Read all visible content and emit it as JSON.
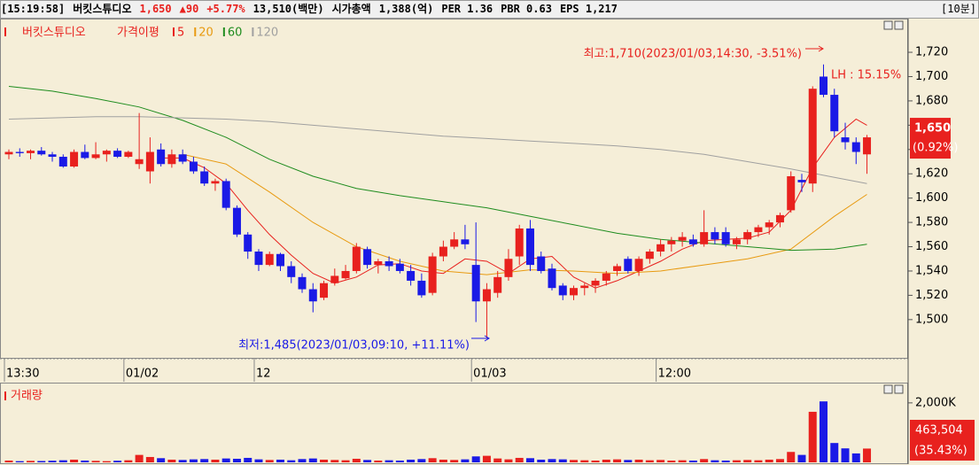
{
  "header": {
    "items": [
      {
        "text": "[15:19:58]"
      },
      {
        "text": "버킷스튜디오"
      },
      {
        "text": "1,650",
        "color": "#e8211e"
      },
      {
        "text": "▲90",
        "color": "#e8211e"
      },
      {
        "text": "+5.77%",
        "color": "#e8211e"
      },
      {
        "text": "13,510(백만)"
      },
      {
        "text": "시가총액"
      },
      {
        "text": "1,388(억)"
      },
      {
        "text": "PER 1.36"
      },
      {
        "text": "PBR 0.63"
      },
      {
        "text": "EPS 1,217"
      }
    ],
    "interval": "[10분]"
  },
  "chart_data": [
    {
      "type": "candlestick",
      "legend_title": "버킷스튜디오",
      "legend_label": "가격이평",
      "up_color": "#e8211e",
      "down_color": "#1a1ae6",
      "open": [
        1636,
        1638,
        1637,
        1639,
        1636,
        1634,
        1626,
        1638,
        1633,
        1636,
        1639,
        1634,
        1628,
        1622,
        1640,
        1628,
        1636,
        1630,
        1622,
        1612,
        1614,
        1592,
        1570,
        1556,
        1545,
        1554,
        1544,
        1535,
        1525,
        1518,
        1530,
        1534,
        1540,
        1558,
        1545,
        1548,
        1546,
        1540,
        1532,
        1522,
        1552,
        1560,
        1566,
        1545,
        1515,
        1522,
        1535,
        1552,
        1575,
        1552,
        1542,
        1528,
        1520,
        1526,
        1528,
        1532,
        1540,
        1550,
        1540,
        1550,
        1556,
        1562,
        1565,
        1566,
        1562,
        1572,
        1572,
        1562,
        1566,
        1572,
        1576,
        1580,
        1590,
        1615,
        1612,
        1700,
        1685,
        1650,
        1646,
        1636
      ],
      "high": [
        1640,
        1641,
        1640,
        1642,
        1638,
        1636,
        1640,
        1644,
        1646,
        1640,
        1641,
        1639,
        1670,
        1650,
        1645,
        1640,
        1640,
        1634,
        1626,
        1616,
        1616,
        1594,
        1572,
        1558,
        1556,
        1555,
        1548,
        1538,
        1530,
        1532,
        1542,
        1545,
        1563,
        1560,
        1550,
        1552,
        1550,
        1545,
        1538,
        1555,
        1565,
        1572,
        1578,
        1580,
        1530,
        1540,
        1558,
        1578,
        1582,
        1556,
        1546,
        1530,
        1528,
        1530,
        1534,
        1540,
        1546,
        1552,
        1552,
        1558,
        1566,
        1568,
        1572,
        1570,
        1590,
        1576,
        1576,
        1568,
        1574,
        1578,
        1582,
        1588,
        1622,
        1620,
        1692,
        1710,
        1690,
        1662,
        1650,
        1652
      ],
      "low": [
        1632,
        1634,
        1632,
        1635,
        1630,
        1625,
        1625,
        1632,
        1632,
        1630,
        1633,
        1633,
        1624,
        1612,
        1626,
        1625,
        1628,
        1620,
        1610,
        1606,
        1590,
        1568,
        1550,
        1540,
        1544,
        1540,
        1530,
        1522,
        1506,
        1516,
        1528,
        1533,
        1538,
        1542,
        1538,
        1540,
        1538,
        1528,
        1518,
        1520,
        1548,
        1558,
        1558,
        1498,
        1485,
        1518,
        1532,
        1545,
        1540,
        1538,
        1524,
        1516,
        1516,
        1520,
        1522,
        1528,
        1536,
        1538,
        1536,
        1546,
        1552,
        1556,
        1560,
        1560,
        1560,
        1562,
        1560,
        1558,
        1562,
        1568,
        1570,
        1576,
        1588,
        1605,
        1605,
        1683,
        1650,
        1640,
        1628,
        1620
      ],
      "close": [
        1638,
        1637,
        1639,
        1636,
        1634,
        1626,
        1638,
        1633,
        1636,
        1639,
        1634,
        1638,
        1632,
        1638,
        1628,
        1636,
        1630,
        1622,
        1612,
        1614,
        1592,
        1570,
        1556,
        1545,
        1554,
        1544,
        1535,
        1525,
        1515,
        1530,
        1536,
        1540,
        1560,
        1545,
        1548,
        1544,
        1540,
        1532,
        1520,
        1552,
        1560,
        1566,
        1562,
        1515,
        1525,
        1535,
        1550,
        1575,
        1545,
        1540,
        1526,
        1520,
        1526,
        1528,
        1532,
        1538,
        1544,
        1540,
        1550,
        1556,
        1562,
        1565,
        1568,
        1562,
        1572,
        1566,
        1562,
        1566,
        1572,
        1576,
        1580,
        1586,
        1618,
        1613,
        1690,
        1685,
        1655,
        1646,
        1638,
        1650
      ],
      "series": [
        {
          "name": "5",
          "color": "#e8211e",
          "x": [
            14,
            16,
            18,
            20,
            22,
            24,
            26,
            28,
            30,
            32,
            34,
            36,
            38,
            40,
            42,
            44,
            46,
            48,
            50,
            52,
            54,
            56,
            58,
            60,
            62,
            64,
            66,
            68,
            70,
            72,
            74,
            76,
            78,
            79
          ],
          "values": [
            1633,
            1633,
            1625,
            1612,
            1590,
            1570,
            1553,
            1538,
            1530,
            1535,
            1545,
            1546,
            1540,
            1538,
            1550,
            1548,
            1538,
            1550,
            1552,
            1535,
            1526,
            1532,
            1540,
            1548,
            1558,
            1565,
            1566,
            1567,
            1572,
            1590,
            1625,
            1650,
            1665,
            1660
          ]
        },
        {
          "name": "20",
          "color": "#e89a10",
          "x": [
            16,
            20,
            24,
            28,
            32,
            36,
            40,
            44,
            48,
            52,
            56,
            60,
            64,
            68,
            72,
            76,
            79
          ],
          "values": [
            1636,
            1628,
            1605,
            1580,
            1560,
            1548,
            1540,
            1537,
            1541,
            1540,
            1538,
            1540,
            1545,
            1550,
            1558,
            1585,
            1603
          ]
        },
        {
          "name": "60",
          "color": "#1e8c1e",
          "x": [
            0,
            4,
            8,
            12,
            16,
            20,
            24,
            28,
            32,
            36,
            40,
            44,
            48,
            52,
            56,
            60,
            64,
            68,
            72,
            76,
            79
          ],
          "values": [
            1692,
            1688,
            1682,
            1675,
            1664,
            1650,
            1632,
            1618,
            1608,
            1602,
            1597,
            1592,
            1585,
            1578,
            1571,
            1566,
            1563,
            1560,
            1557,
            1558,
            1562
          ]
        },
        {
          "name": "120",
          "color": "#a0a0a0",
          "x": [
            0,
            4,
            8,
            12,
            16,
            20,
            24,
            28,
            32,
            36,
            40,
            44,
            48,
            52,
            56,
            60,
            64,
            68,
            72,
            76,
            79
          ],
          "values": [
            1665,
            1666,
            1667,
            1667,
            1666,
            1665,
            1663,
            1660,
            1657,
            1654,
            1651,
            1649,
            1647,
            1645,
            1643,
            1640,
            1636,
            1630,
            1624,
            1617,
            1612
          ]
        }
      ],
      "ylim": [
        1470,
        1747
      ],
      "yticks": [
        {
          "value": 1500,
          "label": "1,500"
        },
        {
          "value": 1520,
          "label": "1,520"
        },
        {
          "value": 1540,
          "label": "1,540"
        },
        {
          "value": 1560,
          "label": "1,560"
        },
        {
          "value": 1580,
          "label": "1,580"
        },
        {
          "value": 1600,
          "label": "1,600"
        },
        {
          "value": 1620,
          "label": "1,620"
        },
        {
          "value": 1640,
          "label": "1,640"
        },
        {
          "value": 1660,
          "label": "1,660"
        },
        {
          "value": 1680,
          "label": "1,680"
        },
        {
          "value": 1700,
          "label": "1,700"
        },
        {
          "value": 1720,
          "label": "1,720"
        }
      ],
      "xticks": [
        {
          "value": 0,
          "label": "13:30"
        },
        {
          "value": 11,
          "label": "01/02"
        },
        {
          "value": 23,
          "label": "12"
        },
        {
          "value": 43,
          "label": "01/03"
        },
        {
          "value": 60,
          "label": "12:00"
        }
      ],
      "annotations": [
        {
          "text": "최고:1,710(2023/01/03,14:30, -3.51%)",
          "color": "#e8211e"
        },
        {
          "text": "LH :  15.15%",
          "color": "#e8211e"
        },
        {
          "text": "최저:1,485(2023/01/03,09:10, +11.11%)",
          "color": "#1a1ae6"
        }
      ],
      "last_label": "1,650",
      "last_change": "(0.92%)"
    },
    {
      "type": "bar",
      "title": "거래량",
      "values": [
        60000,
        40000,
        50000,
        45000,
        55000,
        70000,
        90000,
        60000,
        50000,
        40000,
        55000,
        70000,
        250000,
        180000,
        140000,
        90000,
        80000,
        100000,
        110000,
        90000,
        130000,
        120000,
        150000,
        100000,
        80000,
        90000,
        70000,
        110000,
        130000,
        90000,
        80000,
        70000,
        120000,
        80000,
        60000,
        70000,
        60000,
        90000,
        110000,
        140000,
        90000,
        80000,
        100000,
        200000,
        220000,
        130000,
        100000,
        150000,
        140000,
        90000,
        110000,
        100000,
        80000,
        70000,
        60000,
        90000,
        100000,
        80000,
        90000,
        70000,
        80000,
        60000,
        70000,
        60000,
        110000,
        70000,
        60000,
        70000,
        80000,
        70000,
        90000,
        110000,
        350000,
        250000,
        1700000,
        2050000,
        650000,
        470000,
        300000,
        463504
      ],
      "ylim": [
        0,
        2800000
      ],
      "yticks": [
        {
          "value": 2000000,
          "label": "2,000K"
        }
      ],
      "last_label": "463,504",
      "last_change": "(35.43%)"
    }
  ]
}
